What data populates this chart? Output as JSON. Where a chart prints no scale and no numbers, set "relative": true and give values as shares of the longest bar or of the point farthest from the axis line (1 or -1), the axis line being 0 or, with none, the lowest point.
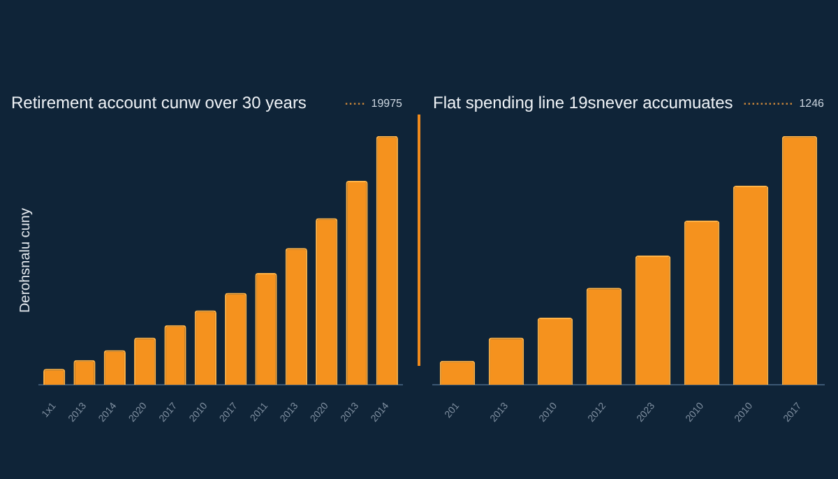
{
  "chart_data": [
    {
      "type": "bar",
      "title": "Retirement account cunw over 30 years",
      "annotations": [
        "19975"
      ],
      "ylabel": "Derohsnalu cuny",
      "categories": [
        "1x1",
        "2013",
        "2014",
        "2020",
        "2017",
        "2010",
        "2017",
        "2011",
        "2013",
        "2020",
        "2013",
        "2014"
      ],
      "series": [
        {
          "color": "#f5921e",
          "values": [
            0.065,
            0.1,
            0.14,
            0.19,
            0.24,
            0.3,
            0.37,
            0.45,
            0.55,
            0.67,
            0.82,
            1
          ]
        }
      ],
      "relative": true,
      "legend": false
    },
    {
      "type": "bar",
      "title": "Flat spending line 19snever accumuates",
      "annotations": [
        "1246"
      ],
      "categories": [
        "201",
        "2013",
        "2010",
        "2012",
        "2023",
        "2010",
        "2010",
        "2017"
      ],
      "series": [
        {
          "color": "#f5921e",
          "values": [
            0.097,
            0.19,
            0.27,
            0.39,
            0.52,
            0.66,
            0.8,
            1
          ]
        }
      ],
      "relative": true,
      "legend": false
    }
  ]
}
